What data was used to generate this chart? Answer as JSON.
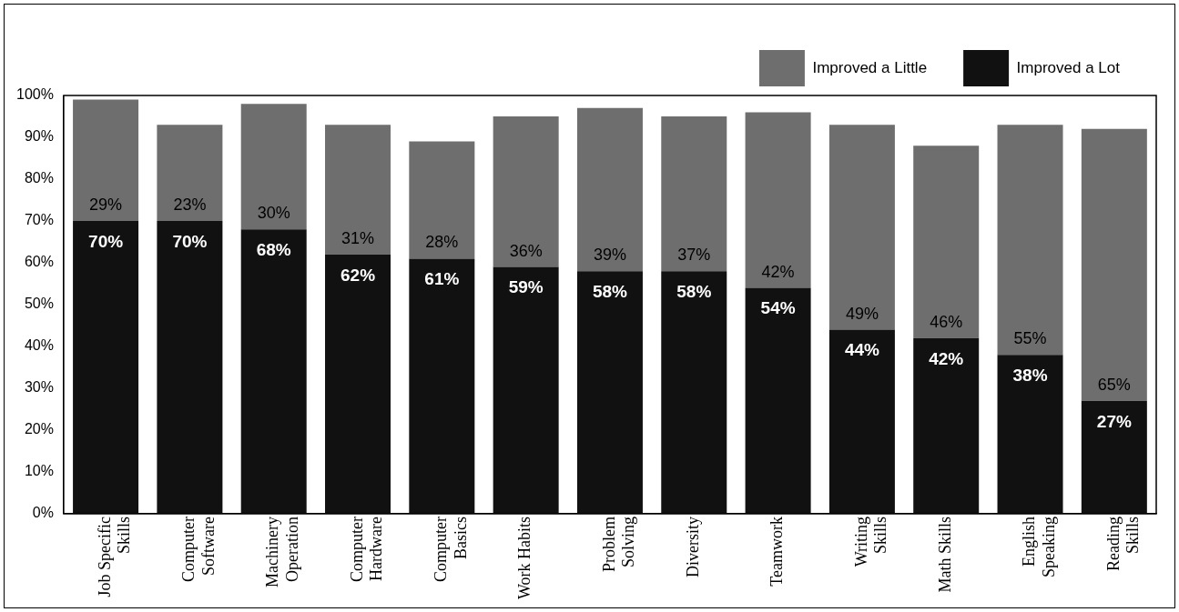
{
  "chart_data": {
    "type": "bar",
    "stacked": true,
    "categories": [
      "Job Specific Skills",
      "Computer Software",
      "Machinery Operation",
      "Computer Hardware",
      "Computer Basics",
      "Work Habits",
      "Problem Solving",
      "Diversity",
      "Teamwork",
      "Writing Skills",
      "Math Skills",
      "English Speaking",
      "Reading Skills"
    ],
    "series": [
      {
        "name": "Improved a Lot",
        "color": "#111111",
        "values": [
          70,
          70,
          68,
          62,
          61,
          59,
          58,
          58,
          54,
          44,
          42,
          38,
          27
        ],
        "value_labels": [
          "70%",
          "70%",
          "68%",
          "62%",
          "61%",
          "59%",
          "58%",
          "58%",
          "54%",
          "44%",
          "42%",
          "38%",
          "27%"
        ]
      },
      {
        "name": "Improved a Little",
        "color": "#6e6e6e",
        "values": [
          29,
          23,
          30,
          31,
          28,
          36,
          39,
          37,
          42,
          49,
          46,
          55,
          65
        ],
        "value_labels": [
          "29%",
          "23%",
          "30%",
          "31%",
          "28%",
          "36%",
          "39%",
          "37%",
          "42%",
          "49%",
          "46%",
          "55%",
          "65%"
        ]
      }
    ],
    "ylim": [
      0,
      100
    ],
    "yticks": [
      {
        "value": 0,
        "label": "0%"
      },
      {
        "value": 10,
        "label": "10%"
      },
      {
        "value": 20,
        "label": "20%"
      },
      {
        "value": 30,
        "label": "30%"
      },
      {
        "value": 40,
        "label": "40%"
      },
      {
        "value": 50,
        "label": "50%"
      },
      {
        "value": 60,
        "label": "60%"
      },
      {
        "value": 70,
        "label": "70%"
      },
      {
        "value": 80,
        "label": "80%"
      },
      {
        "value": 90,
        "label": "90%"
      },
      {
        "value": 100,
        "label": "100%"
      }
    ],
    "grid": false,
    "legend": "top right"
  }
}
